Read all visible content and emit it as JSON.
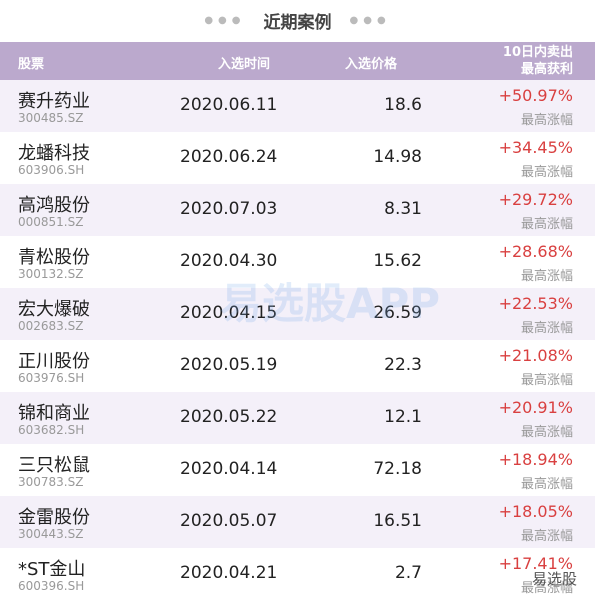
{
  "title": "近期案例",
  "table": {
    "header": [
      "股票",
      "入选时间",
      "入选价格",
      [
        "10日内卖出",
        "最高获利"
      ]
    ],
    "rows": [
      {
        "name": "赛升药业",
        "code": "300485.SZ",
        "date": "2020.06.11",
        "price": "18.6",
        "gain": "+50.97%",
        "gain_label": "最高涨幅"
      },
      {
        "name": "龙蟠科技",
        "code": "603906.SH",
        "date": "2020.06.24",
        "price": "14.98",
        "gain": "+34.45%",
        "gain_label": "最高涨幅"
      },
      {
        "name": "高鸿股份",
        "code": "000851.SZ",
        "date": "2020.07.03",
        "price": "8.31",
        "gain": "+29.72%",
        "gain_label": "最高涨幅"
      },
      {
        "name": "青松股份",
        "code": "300132.SZ",
        "date": "2020.04.30",
        "price": "15.62",
        "gain": "+28.68%",
        "gain_label": "最高涨幅"
      },
      {
        "name": "宏大爆破",
        "code": "002683.SZ",
        "date": "2020.04.15",
        "price": "26.59",
        "gain": "+22.53%",
        "gain_label": "最高涨幅"
      },
      {
        "name": "正川股份",
        "code": "603976.SH",
        "date": "2020.05.19",
        "price": "22.3",
        "gain": "+21.08%",
        "gain_label": "最高涨幅"
      },
      {
        "name": "锦和商业",
        "code": "603682.SH",
        "date": "2020.05.22",
        "price": "12.1",
        "gain": "+20.91%",
        "gain_label": "最高涨幅"
      },
      {
        "name": "三只松鼠",
        "code": "300783.SZ",
        "date": "2020.04.14",
        "price": "72.18",
        "gain": "+18.94%",
        "gain_label": "最高涨幅"
      },
      {
        "name": "金雷股份",
        "code": "300443.SZ",
        "date": "2020.05.07",
        "price": "16.51",
        "gain": "+18.05%",
        "gain_label": "最高涨幅"
      },
      {
        "name": "*ST金山",
        "code": "600396.SH",
        "date": "2020.04.21",
        "price": "2.7",
        "gain": "+17.41%",
        "gain_label": "最高涨幅"
      }
    ]
  },
  "watermark": "易选股APP",
  "logo": "易选股"
}
